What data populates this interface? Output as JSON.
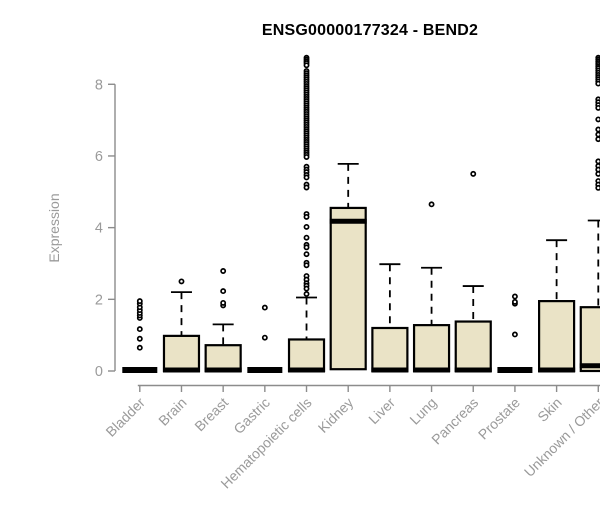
{
  "chart_data": {
    "type": "boxplot",
    "title": "ENSG00000177324 - BEND2",
    "ylabel": "Expression",
    "xlabel": "",
    "ylim": [
      0,
      8.8
    ],
    "yticks": [
      0,
      2,
      4,
      6,
      8
    ],
    "grid": false,
    "legend": "none",
    "categories": [
      "Bladder",
      "Brain",
      "Breast",
      "Gastric",
      "Hematopoietic cells",
      "Kidney",
      "Liver",
      "Lung",
      "Pancreas",
      "Prostate",
      "Skin",
      "Unknown / Other"
    ],
    "boxes": [
      {
        "category": "Bladder",
        "q1": 0,
        "median": 0,
        "q3": 0,
        "whisker_low": 0,
        "whisker_high": 0,
        "outliers": [
          0.65,
          0.9,
          1.17,
          1.48,
          1.55,
          1.62,
          1.7,
          1.78,
          1.88,
          1.95
        ]
      },
      {
        "category": "Brain",
        "q1": 0,
        "median": 0,
        "q3": 0.98,
        "whisker_low": 0,
        "whisker_high": 2.2,
        "outliers": [
          2.5
        ]
      },
      {
        "category": "Breast",
        "q1": 0,
        "median": 0,
        "q3": 0.72,
        "whisker_low": 0,
        "whisker_high": 1.3,
        "outliers": [
          1.83,
          1.9,
          2.23,
          2.79
        ]
      },
      {
        "category": "Gastric",
        "q1": 0,
        "median": 0,
        "q3": 0,
        "whisker_low": 0,
        "whisker_high": 0,
        "outliers": [
          0.93,
          1.77
        ]
      },
      {
        "category": "Hematopoietic cells",
        "q1": 0,
        "median": 0,
        "q3": 0.88,
        "whisker_low": 0,
        "whisker_high": 2.05,
        "outliers": [
          8.74,
          8.69,
          8.64,
          8.59,
          8.53,
          8.37,
          8.31,
          8.25,
          8.19,
          8.13,
          8.07,
          8.01,
          7.95,
          7.89,
          7.83,
          7.77,
          7.71,
          7.65,
          7.59,
          7.53,
          7.47,
          7.41,
          7.35,
          7.29,
          7.23,
          7.17,
          7.11,
          7.05,
          6.99,
          6.93,
          6.87,
          6.81,
          6.75,
          6.69,
          6.63,
          6.57,
          6.51,
          6.45,
          6.39,
          6.33,
          6.27,
          6.21,
          6.15,
          6.09,
          6.03,
          5.97,
          5.7,
          5.62,
          5.55,
          5.47,
          5.4,
          5.2,
          5.12,
          4.38,
          4.3,
          4.02,
          3.72,
          3.52,
          3.45,
          3.26,
          3.02,
          2.95,
          2.65,
          2.55,
          2.45,
          2.38,
          2.3,
          2.15
        ]
      },
      {
        "category": "Kidney",
        "q1": 0.05,
        "median": 4.15,
        "q3": 4.55,
        "whisker_low": 0.05,
        "whisker_high": 5.78,
        "outliers": []
      },
      {
        "category": "Liver",
        "q1": 0,
        "median": 0,
        "q3": 1.2,
        "whisker_low": 0,
        "whisker_high": 2.98,
        "outliers": []
      },
      {
        "category": "Lung",
        "q1": 0,
        "median": 0,
        "q3": 1.28,
        "whisker_low": 0,
        "whisker_high": 2.88,
        "outliers": [
          4.65
        ]
      },
      {
        "category": "Pancreas",
        "q1": 0,
        "median": 0,
        "q3": 1.38,
        "whisker_low": 0,
        "whisker_high": 2.37,
        "outliers": [
          5.5
        ]
      },
      {
        "category": "Prostate",
        "q1": 0,
        "median": 0,
        "q3": 0,
        "whisker_low": 0,
        "whisker_high": 0,
        "outliers": [
          1.02,
          1.88,
          1.93,
          2.08
        ]
      },
      {
        "category": "Skin",
        "q1": 0,
        "median": 0,
        "q3": 1.95,
        "whisker_low": 0,
        "whisker_high": 3.65,
        "outliers": []
      },
      {
        "category": "Unknown / Other",
        "q1": 0,
        "median": 0.12,
        "q3": 1.78,
        "whisker_low": 0,
        "whisker_high": 4.2,
        "outliers": [
          8.74,
          8.69,
          8.64,
          8.59,
          8.54,
          8.49,
          8.44,
          8.38,
          8.32,
          8.26,
          8.2,
          8.14,
          8.08,
          8.02,
          7.58,
          7.5,
          7.42,
          7.34,
          7.02,
          6.74,
          6.6,
          6.47,
          5.85,
          5.72,
          5.62,
          5.5,
          5.3,
          5.2,
          5.11
        ]
      }
    ],
    "colors": {
      "box_fill": "#EAE3C6",
      "box_border": "#000000",
      "median": "#000000",
      "whisker": "#000000",
      "outlier_stroke": "#000000",
      "outlier_fill": "#FFFFFF",
      "axis_line": "#8C8C8C",
      "tick_text": "#9A9A9A",
      "title_text": "#000000",
      "background": "#FFFFFF"
    }
  }
}
